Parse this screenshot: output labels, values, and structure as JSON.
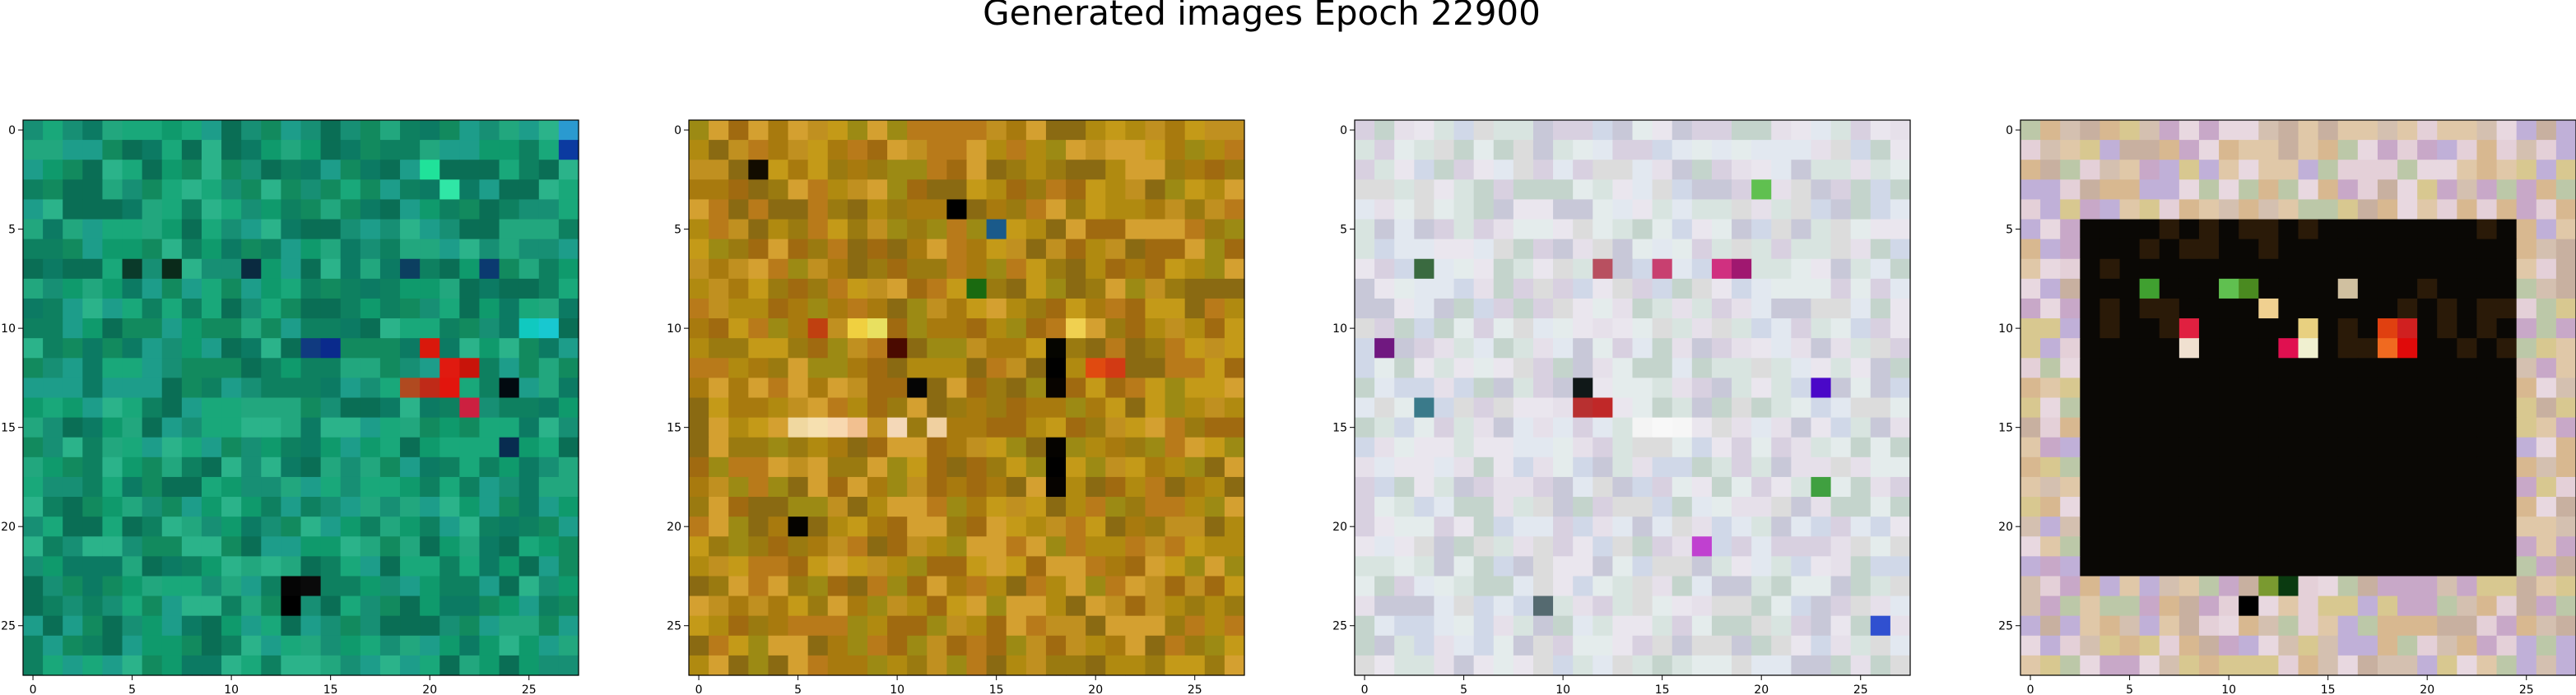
{
  "figure": {
    "title": "Generated images Epoch 22900"
  },
  "chart_data": [
    {
      "type": "heatmap",
      "description_role": "generated-image-1",
      "grid": [
        28,
        28
      ],
      "xlim": [
        -0.5,
        27.5
      ],
      "ylim": [
        27.5,
        -0.5
      ],
      "xticks": [
        0,
        5,
        10,
        15,
        20,
        25
      ],
      "yticks": [
        0,
        5,
        10,
        15,
        20,
        25
      ],
      "palette": [
        "#128a5e",
        "#0f9a6c",
        "#19a87a",
        "#0c7a63",
        "#1d9d8a",
        "#2bb38a",
        "#0a6e55",
        "#178f74",
        "#22a77e",
        "#0e8060"
      ],
      "highlights": [
        {
          "x": 20,
          "y": 11,
          "color": "#d9180c"
        },
        {
          "x": 21,
          "y": 12,
          "color": "#e01a10"
        },
        {
          "x": 22,
          "y": 12,
          "color": "#c8140a"
        },
        {
          "x": 21,
          "y": 13,
          "color": "#e2150d"
        },
        {
          "x": 20,
          "y": 13,
          "color": "#bf2a18"
        },
        {
          "x": 19,
          "y": 13,
          "color": "#b04a20"
        },
        {
          "x": 22,
          "y": 14,
          "color": "#cc2040"
        },
        {
          "x": 13,
          "y": 23,
          "color": "#050505"
        },
        {
          "x": 13,
          "y": 24,
          "color": "#000000"
        },
        {
          "x": 14,
          "y": 23,
          "color": "#0a0a0a"
        },
        {
          "x": 24,
          "y": 13,
          "color": "#020a10"
        },
        {
          "x": 23,
          "y": 7,
          "color": "#0b3a70"
        },
        {
          "x": 15,
          "y": 11,
          "color": "#0a2a8c"
        },
        {
          "x": 14,
          "y": 11,
          "color": "#103a80"
        },
        {
          "x": 24,
          "y": 16,
          "color": "#082c50"
        },
        {
          "x": 5,
          "y": 7,
          "color": "#0a3a2a"
        },
        {
          "x": 7,
          "y": 7,
          "color": "#0a2a1a"
        },
        {
          "x": 11,
          "y": 7,
          "color": "#0a2a40"
        },
        {
          "x": 19,
          "y": 7,
          "color": "#0c3f60"
        },
        {
          "x": 20,
          "y": 2,
          "color": "#20e29a"
        },
        {
          "x": 21,
          "y": 3,
          "color": "#30e6a6"
        },
        {
          "x": 25,
          "y": 10,
          "color": "#10c9c0"
        },
        {
          "x": 26,
          "y": 10,
          "color": "#18c8d0"
        },
        {
          "x": 27,
          "y": 1,
          "color": "#0b3aa0"
        },
        {
          "x": 27,
          "y": 0,
          "color": "#2a9ad0"
        }
      ]
    },
    {
      "type": "heatmap",
      "description_role": "generated-image-2",
      "grid": [
        28,
        28
      ],
      "xlim": [
        -0.5,
        27.5
      ],
      "ylim": [
        27.5,
        -0.5
      ],
      "xticks": [
        0,
        5,
        10,
        15,
        20,
        25
      ],
      "yticks": [
        0,
        5,
        10,
        15,
        20,
        25
      ],
      "palette": [
        "#b08a10",
        "#c49a18",
        "#9a7a10",
        "#8a6a12",
        "#d4a030",
        "#a87a0e",
        "#c09020",
        "#9c8a14",
        "#b87a1a",
        "#a06a10"
      ],
      "highlights": [
        {
          "x": 18,
          "y": 11,
          "color": "#050500"
        },
        {
          "x": 18,
          "y": 12,
          "color": "#000000"
        },
        {
          "x": 18,
          "y": 13,
          "color": "#080400"
        },
        {
          "x": 18,
          "y": 16,
          "color": "#050300"
        },
        {
          "x": 18,
          "y": 17,
          "color": "#000000"
        },
        {
          "x": 18,
          "y": 18,
          "color": "#060300"
        },
        {
          "x": 5,
          "y": 20,
          "color": "#050300"
        },
        {
          "x": 11,
          "y": 13,
          "color": "#050505"
        },
        {
          "x": 13,
          "y": 4,
          "color": "#000000"
        },
        {
          "x": 3,
          "y": 2,
          "color": "#120c00"
        },
        {
          "x": 5,
          "y": 15,
          "color": "#f0d8a0"
        },
        {
          "x": 6,
          "y": 15,
          "color": "#f6e0b0"
        },
        {
          "x": 7,
          "y": 15,
          "color": "#f8d8b0"
        },
        {
          "x": 8,
          "y": 15,
          "color": "#f2c090"
        },
        {
          "x": 10,
          "y": 15,
          "color": "#f4d8b8"
        },
        {
          "x": 12,
          "y": 15,
          "color": "#f0d0a0"
        },
        {
          "x": 8,
          "y": 10,
          "color": "#f0d040"
        },
        {
          "x": 9,
          "y": 10,
          "color": "#e8e060"
        },
        {
          "x": 19,
          "y": 10,
          "color": "#f0d050"
        },
        {
          "x": 10,
          "y": 11,
          "color": "#4a0a00"
        },
        {
          "x": 6,
          "y": 10,
          "color": "#c04010"
        },
        {
          "x": 20,
          "y": 12,
          "color": "#e04a10"
        },
        {
          "x": 21,
          "y": 12,
          "color": "#d23a14"
        },
        {
          "x": 14,
          "y": 8,
          "color": "#1a6a10"
        },
        {
          "x": 15,
          "y": 5,
          "color": "#1a5a8a"
        }
      ]
    },
    {
      "type": "heatmap",
      "description_role": "generated-image-3",
      "grid": [
        28,
        28
      ],
      "xlim": [
        -0.5,
        27.5
      ],
      "ylim": [
        27.5,
        -0.5
      ],
      "xticks": [
        0,
        5,
        10,
        15,
        20,
        25
      ],
      "yticks": [
        0,
        5,
        10,
        15,
        20,
        25
      ],
      "palette": [
        "#dcdcdc",
        "#e6e0ea",
        "#d8e4e0",
        "#c8c8d8",
        "#e2e8f0",
        "#d0d8e8",
        "#eae6ee",
        "#c4d4cc",
        "#d8d0e0",
        "#e4ecec"
      ],
      "highlights": [
        {
          "x": 11,
          "y": 14,
          "color": "#b83030"
        },
        {
          "x": 12,
          "y": 14,
          "color": "#c02828"
        },
        {
          "x": 11,
          "y": 13,
          "color": "#101818"
        },
        {
          "x": 23,
          "y": 13,
          "color": "#4a08c8"
        },
        {
          "x": 19,
          "y": 7,
          "color": "#a01870"
        },
        {
          "x": 18,
          "y": 7,
          "color": "#d03080"
        },
        {
          "x": 15,
          "y": 7,
          "color": "#c84070"
        },
        {
          "x": 12,
          "y": 7,
          "color": "#b85060"
        },
        {
          "x": 3,
          "y": 7,
          "color": "#3a6a40"
        },
        {
          "x": 1,
          "y": 11,
          "color": "#701880"
        },
        {
          "x": 20,
          "y": 3,
          "color": "#60c050"
        },
        {
          "x": 3,
          "y": 14,
          "color": "#3a7a8a"
        },
        {
          "x": 23,
          "y": 18,
          "color": "#40a040"
        },
        {
          "x": 14,
          "y": 15,
          "color": "#f4f4f4"
        },
        {
          "x": 15,
          "y": 15,
          "color": "#f8f8f8"
        },
        {
          "x": 16,
          "y": 15,
          "color": "#f6f6f6"
        },
        {
          "x": 17,
          "y": 21,
          "color": "#c040d0"
        },
        {
          "x": 26,
          "y": 25,
          "color": "#3050d0"
        },
        {
          "x": 9,
          "y": 24,
          "color": "#556a70"
        }
      ]
    },
    {
      "type": "heatmap",
      "description_role": "generated-image-4",
      "grid": [
        28,
        28
      ],
      "xlim": [
        -0.5,
        27.5
      ],
      "ylim": [
        27.5,
        -0.5
      ],
      "xticks": [
        0,
        5,
        10,
        15,
        20,
        25
      ],
      "yticks": [
        0,
        5,
        10,
        15,
        20,
        25
      ],
      "palette": [
        "#d8b890",
        "#e0c8a8",
        "#c8a8c8",
        "#d4c0b0",
        "#e4d0d8",
        "#c0b0d8",
        "#d8c890",
        "#c8b0a0",
        "#e8d8e0",
        "#bcc8a8"
      ],
      "dark_region": {
        "x0": 3,
        "x1": 24,
        "y0": 5,
        "y1": 22,
        "color": "#0a0805"
      },
      "highlights": [
        {
          "x": 8,
          "y": 10,
          "color": "#e02040"
        },
        {
          "x": 13,
          "y": 11,
          "color": "#e01050"
        },
        {
          "x": 14,
          "y": 11,
          "color": "#f0f0d0"
        },
        {
          "x": 18,
          "y": 10,
          "color": "#e04010"
        },
        {
          "x": 19,
          "y": 11,
          "color": "#e00a0a"
        },
        {
          "x": 19,
          "y": 10,
          "color": "#d02020"
        },
        {
          "x": 18,
          "y": 11,
          "color": "#f06a20"
        },
        {
          "x": 12,
          "y": 9,
          "color": "#f0d090"
        },
        {
          "x": 14,
          "y": 10,
          "color": "#e8d080"
        },
        {
          "x": 6,
          "y": 8,
          "color": "#40a030"
        },
        {
          "x": 10,
          "y": 8,
          "color": "#60c050"
        },
        {
          "x": 11,
          "y": 8,
          "color": "#4a8a20"
        },
        {
          "x": 16,
          "y": 8,
          "color": "#d0c0a0"
        },
        {
          "x": 8,
          "y": 11,
          "color": "#f0e0d0"
        },
        {
          "x": 11,
          "y": 24,
          "color": "#000000"
        },
        {
          "x": 13,
          "y": 23,
          "color": "#0a3a10"
        },
        {
          "x": 12,
          "y": 23,
          "color": "#7a9a30"
        }
      ]
    }
  ]
}
